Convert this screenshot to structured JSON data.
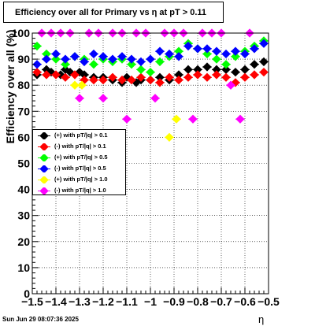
{
  "title": "Efficiency over all for Primary vs    η at pT > 0.11",
  "date": "Sun Jun 29 08:07:36 2025",
  "chart_data": {
    "type": "scatter",
    "title": "Efficiency over all for Primary vs    η at pT > 0.11",
    "xlabel": "η",
    "ylabel": "Efficiency over all (%)",
    "xlim": [
      -1.5,
      -0.5
    ],
    "ylim": [
      0,
      100
    ],
    "xticks": [
      "−1.5",
      "−1.4",
      "−1.3",
      "−1.2",
      "−1.1",
      "−1",
      "−0.9",
      "−0.8",
      "−0.7",
      "−0.6",
      "−0.5"
    ],
    "yticks": [
      "0",
      "10",
      "20",
      "30",
      "40",
      "50",
      "60",
      "70",
      "80",
      "90",
      "100"
    ],
    "grid": true,
    "legend_position": "middle-left",
    "series": [
      {
        "name": "(+) with pT/|q| > 0.1",
        "color": "#000000",
        "x": [
          -1.48,
          -1.44,
          -1.42,
          -1.38,
          -1.36,
          -1.34,
          -1.3,
          -1.28,
          -1.24,
          -1.2,
          -1.16,
          -1.12,
          -1.1,
          -1.06,
          -1.04,
          -1,
          -0.96,
          -0.92,
          -0.88,
          -0.84,
          -0.8,
          -0.76,
          -0.72,
          -0.68,
          -0.64,
          -0.6,
          -0.56,
          -0.52
        ],
        "y": [
          84,
          86,
          85,
          84,
          86,
          85,
          85,
          84,
          83,
          83,
          82,
          81,
          83,
          81,
          82,
          82,
          83,
          82,
          84,
          86,
          86,
          87,
          86,
          86,
          85,
          86,
          88,
          89
        ]
      },
      {
        "name": "(-) with pT/|q| > 0.1",
        "color": "#ff0000",
        "x": [
          -1.48,
          -1.44,
          -1.4,
          -1.36,
          -1.32,
          -1.28,
          -1.24,
          -1.2,
          -1.16,
          -1.12,
          -1.08,
          -1.04,
          -1.0,
          -0.96,
          -0.92,
          -0.88,
          -0.84,
          -0.8,
          -0.76,
          -0.72,
          -0.68,
          -0.64,
          -0.6,
          -0.56,
          -0.52
        ],
        "y": [
          85,
          84,
          84,
          83,
          84,
          82,
          82,
          82,
          83,
          82,
          82,
          83,
          82,
          81,
          83,
          82,
          83,
          84,
          83,
          84,
          83,
          81,
          83,
          84,
          85
        ]
      },
      {
        "name": "(+) with pT/|q| > 0.5",
        "color": "#00ff00",
        "x": [
          -1.48,
          -1.44,
          -1.4,
          -1.36,
          -1.32,
          -1.28,
          -1.24,
          -1.2,
          -1.16,
          -1.12,
          -1.08,
          -1.04,
          -1.0,
          -0.96,
          -0.92,
          -0.88,
          -0.84,
          -0.8,
          -0.76,
          -0.72,
          -0.68,
          -0.64,
          -0.6,
          -0.56,
          -0.52
        ],
        "y": [
          95,
          92,
          90,
          88,
          91,
          90,
          88,
          90,
          89,
          90,
          88,
          86,
          85,
          89,
          91,
          93,
          96,
          94,
          92,
          90,
          88,
          91,
          93,
          95,
          97
        ]
      },
      {
        "name": "(-) with pT/|q| > 0.5",
        "color": "#0000ff",
        "x": [
          -1.48,
          -1.44,
          -1.4,
          -1.36,
          -1.32,
          -1.28,
          -1.24,
          -1.2,
          -1.16,
          -1.12,
          -1.08,
          -1.04,
          -1.0,
          -0.96,
          -0.92,
          -0.88,
          -0.84,
          -0.8,
          -0.76,
          -0.72,
          -0.68,
          -0.64,
          -0.6,
          -0.56,
          -0.52
        ],
        "y": [
          88,
          90,
          92,
          90,
          91,
          89,
          92,
          91,
          90,
          91,
          90,
          89,
          90,
          93,
          92,
          91,
          95,
          94,
          94,
          93,
          92,
          93,
          92,
          94,
          96
        ]
      },
      {
        "name": "(+) with pT/|q| > 1.0",
        "color": "#ffff00",
        "x": [
          -1.32,
          -1.29,
          -0.92,
          -0.89
        ],
        "y": [
          80,
          80,
          60,
          67
        ]
      },
      {
        "name": "(-) with pT/|q| > 1.0",
        "color": "#ff00ff",
        "x": [
          -1.46,
          -1.42,
          -1.38,
          -1.34,
          -1.3,
          -1.26,
          -1.22,
          -1.2,
          -1.16,
          -1.12,
          -1.1,
          -1.06,
          -1.02,
          -0.98,
          -0.94,
          -0.9,
          -0.86,
          -0.82,
          -0.78,
          -0.74,
          -0.7,
          -0.66,
          -0.62,
          -0.58
        ],
        "y": [
          100,
          100,
          100,
          100,
          75,
          100,
          100,
          75,
          100,
          100,
          67,
          100,
          100,
          75,
          100,
          100,
          100,
          67,
          100,
          100,
          100,
          80,
          67,
          100
        ]
      }
    ]
  }
}
